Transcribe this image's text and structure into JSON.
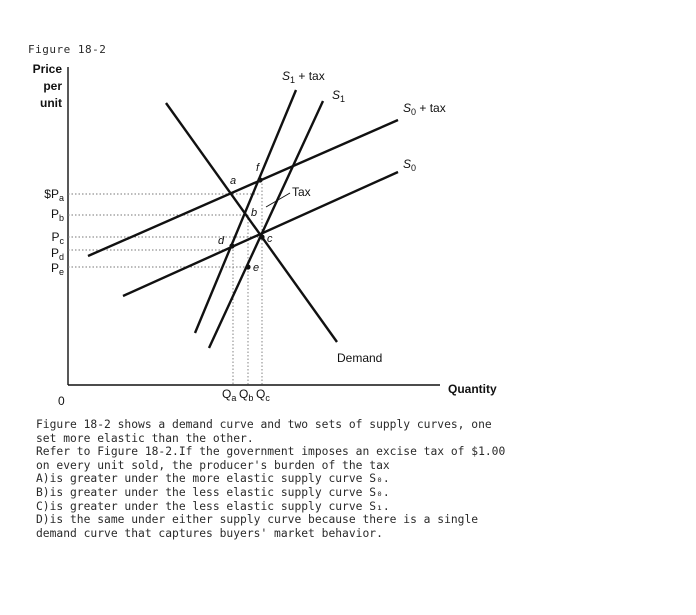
{
  "figure_label": "Figure 18-2",
  "diagram": {
    "y_axis_label": [
      "Price",
      "per",
      "unit"
    ],
    "x_axis_label": "Quantity",
    "origin_label": "0",
    "price_labels": [
      {
        "main": "$P",
        "sub": "a"
      },
      {
        "main": "P",
        "sub": "b"
      },
      {
        "main": "P",
        "sub": "c"
      },
      {
        "main": "P",
        "sub": "d"
      },
      {
        "main": "P",
        "sub": "e"
      }
    ],
    "quantity_labels": [
      {
        "main": "Q",
        "sub": "a"
      },
      {
        "main": "Q",
        "sub": "b"
      },
      {
        "main": "Q",
        "sub": "c"
      }
    ],
    "curves": {
      "s1_tax": {
        "main": "S",
        "sub": "1",
        "suffix": " + tax"
      },
      "s1": {
        "main": "S",
        "sub": "1"
      },
      "s0_tax": {
        "main": "S",
        "sub": "0",
        "suffix": " + tax"
      },
      "s0": {
        "main": "S",
        "sub": "0"
      },
      "demand": "Demand"
    },
    "tax_label": "Tax",
    "points": [
      "a",
      "f",
      "b",
      "d",
      "c",
      "e"
    ]
  },
  "question_lines": [
    "Figure 18-2 shows a demand curve and two sets of supply curves, one",
    "set more elastic than the other.",
    "Refer to Figure 18-2.If the government imposes an excise tax of $1.00",
    "on every unit sold, the producer's burden of the tax",
    "A)is greater under the more elastic supply curve S₀.",
    "B)is greater under the less elastic supply curve S₀.",
    "C)is greater under the less elastic supply curve S₁.",
    "D)is the same under either supply curve because there is a single",
    "demand curve that captures buyers' market behavior."
  ]
}
